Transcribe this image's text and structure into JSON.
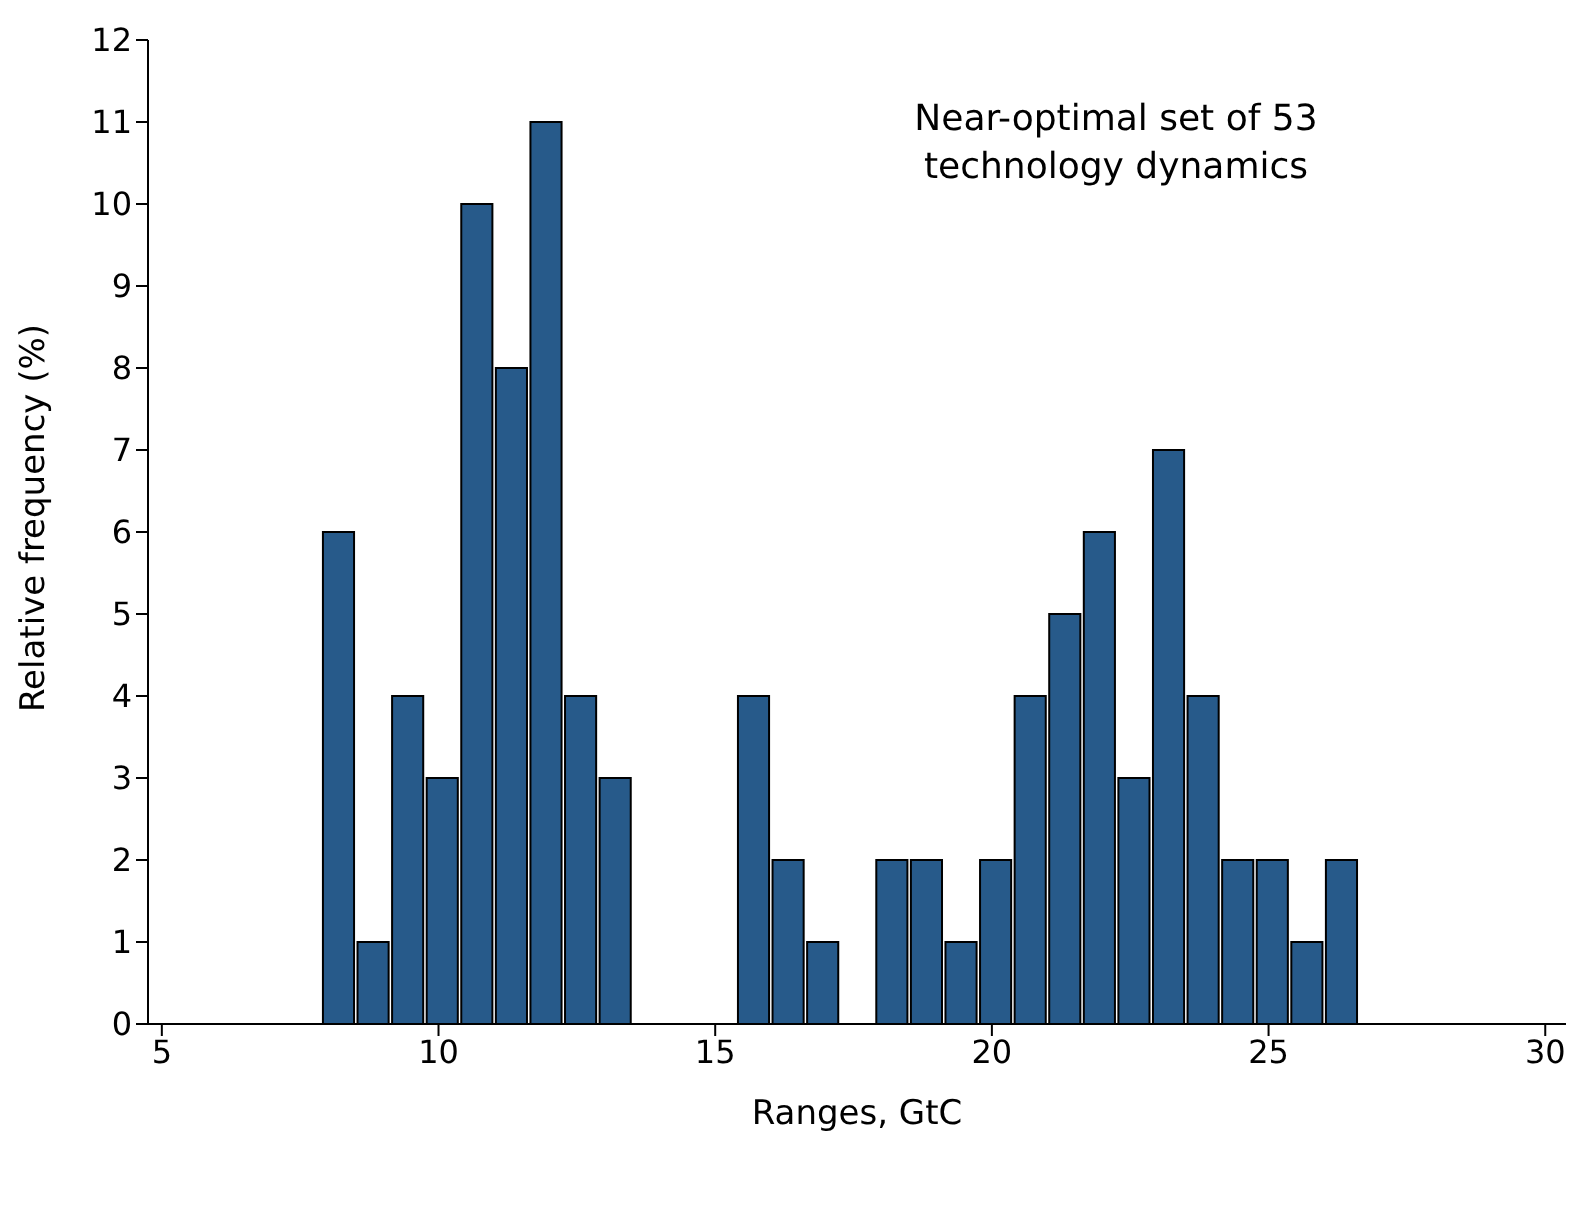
{
  "chart_data": {
    "type": "histogram",
    "xlabel": "Ranges, GtC",
    "ylabel": "Relative frequency (%)",
    "annotations": [
      "Near-optimal set of 53\ntechnology dynamics"
    ],
    "bins": [
      7.875,
      8.5,
      9.125,
      9.75,
      10.375,
      11,
      11.625,
      12.25,
      12.875,
      13.5,
      14.125,
      14.75,
      15.375,
      16,
      16.625,
      17.25,
      17.875,
      18.5,
      19.125,
      19.75,
      20.375,
      21,
      21.625,
      22.25,
      22.875,
      23.5,
      24.125,
      24.75,
      25.375,
      26,
      26.625
    ],
    "values": [
      6,
      1,
      4,
      3,
      10,
      8,
      11,
      4,
      3,
      0,
      0,
      0,
      4,
      2,
      1,
      0,
      2,
      2,
      1,
      2,
      4,
      5,
      6,
      3,
      7,
      4,
      2,
      2,
      1,
      2
    ],
    "color": "#275a8a",
    "xlim": [
      4.75,
      30.375
    ],
    "xticks": [
      5,
      10,
      15,
      20,
      25,
      30
    ],
    "ylim": [
      0,
      12
    ],
    "yticks": [
      0,
      1,
      2,
      3,
      4,
      5,
      6,
      7,
      8,
      9,
      10,
      11,
      12
    ],
    "grid": false,
    "legend": false
  }
}
